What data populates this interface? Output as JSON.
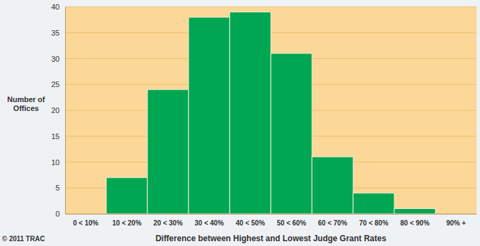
{
  "chart_data": {
    "type": "bar",
    "categories": [
      "0 < 10%",
      "10 < 20%",
      "20 < 30%",
      "30 < 40%",
      "40 < 50%",
      "50 < 60%",
      "60 < 70%",
      "70 < 80%",
      "80 < 90%",
      "90% +"
    ],
    "values": [
      0,
      7,
      24,
      38,
      39,
      31,
      11,
      4,
      1,
      0
    ],
    "color": "#00a651",
    "ylim": [
      0,
      40
    ],
    "yticks": [
      0,
      5,
      10,
      15,
      20,
      25,
      30,
      35,
      40
    ],
    "grid": true,
    "x_label": "Difference between Highest and Lowest Judge Grant Rates",
    "y_label": "Number of Offices",
    "copyright": "© 2011 TRAC"
  }
}
